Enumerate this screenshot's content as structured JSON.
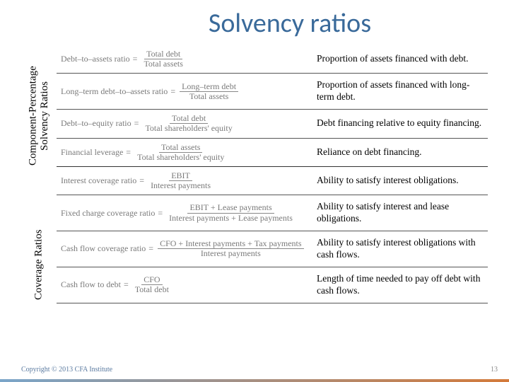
{
  "title": "Solvency ratios",
  "vlabels": {
    "top": "Component-Percentage\nSolvency Ratios",
    "bottom": "Coverage Ratios"
  },
  "rows": [
    {
      "name": "Debt–to–assets ratio",
      "num": "Total debt",
      "den": "Total assets",
      "desc": "Proportion of assets financed with debt."
    },
    {
      "name": "Long–term debt–to–assets ratio",
      "num": "Long–term debt",
      "den": "Total assets",
      "desc": "Proportion of assets financed with long-term debt."
    },
    {
      "name": "Debt–to–equity ratio",
      "num": "Total debt",
      "den": "Total shareholders' equity",
      "desc": "Debt financing relative to equity financing."
    },
    {
      "name": "Financial leverage",
      "num": "Total assets",
      "den": "Total shareholders' equity",
      "desc": "Reliance on debt financing."
    },
    {
      "name": "Interest coverage ratio",
      "num": "EBIT",
      "den": "Interest payments",
      "desc": "Ability to satisfy interest obligations."
    },
    {
      "name": "Fixed charge coverage ratio",
      "num": "EBIT + Lease payments",
      "den": "Interest payments + Lease payments",
      "desc": "Ability to satisfy interest and lease obligations."
    },
    {
      "name": "Cash flow coverage ratio",
      "num": "CFO + Interest payments + Tax payments",
      "den": "Interest payments",
      "desc": "Ability to satisfy interest obligations with cash flows."
    },
    {
      "name": "Cash flow to debt",
      "num": "CFO",
      "den": "Total debt",
      "desc": "Length of time needed to pay off debt with cash flows."
    }
  ],
  "footer": "Copyright © 2013 CFA Institute",
  "page": "13",
  "colors": {
    "title": "#3a6a9a",
    "formula_text": "#7a7a7a",
    "desc_text": "#000000",
    "border": "#555555",
    "footer": "#5a7aa0"
  }
}
